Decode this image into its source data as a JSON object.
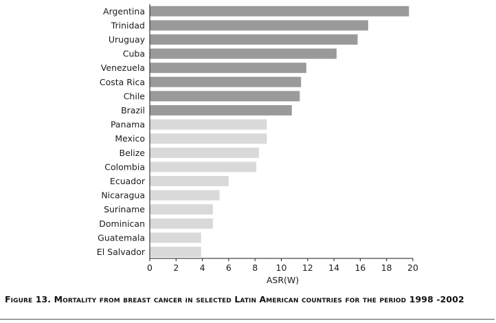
{
  "chart_data": {
    "type": "bar",
    "orientation": "horizontal",
    "categories": [
      "Argentina",
      "Trinidad",
      "Uruguay",
      "Cuba",
      "Venezuela",
      "Costa Rica",
      "Chile",
      "Brazil",
      "Panama",
      "Mexico",
      "Belize",
      "Colombia",
      "Ecuador",
      "Nicaragua",
      "Suriname",
      "Dominican",
      "Guatemala",
      "El Salvador"
    ],
    "values": [
      19.7,
      16.6,
      15.8,
      14.2,
      11.9,
      11.5,
      11.4,
      10.8,
      8.9,
      8.9,
      8.3,
      8.1,
      6.0,
      5.3,
      4.8,
      4.8,
      3.9,
      3.9
    ],
    "group": [
      "dark",
      "dark",
      "dark",
      "dark",
      "dark",
      "dark",
      "dark",
      "dark",
      "light",
      "light",
      "light",
      "light",
      "light",
      "light",
      "light",
      "light",
      "light",
      "light"
    ],
    "colors": {
      "dark": "#9a9a9a",
      "light": "#d9d9d9",
      "axis": "#1a1a1a"
    },
    "xlabel": "ASR(W)",
    "ylabel": "",
    "xlim": [
      0,
      20
    ],
    "xticks": [
      0,
      2,
      4,
      6,
      8,
      10,
      12,
      14,
      16,
      18,
      20
    ],
    "grid": false,
    "legend": "none"
  },
  "caption": "Figure 13. Mortality from breast cancer in selected Latin American countries for the period 1998 -2002"
}
